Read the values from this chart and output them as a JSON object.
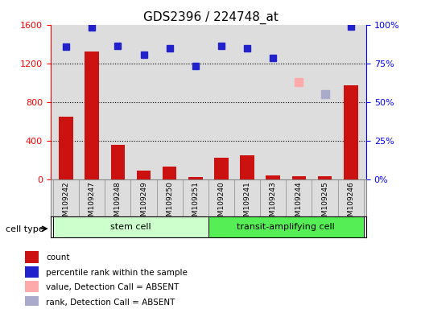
{
  "title": "GDS2396 / 224748_at",
  "samples": [
    "GSM109242",
    "GSM109247",
    "GSM109248",
    "GSM109249",
    "GSM109250",
    "GSM109251",
    "GSM109240",
    "GSM109241",
    "GSM109243",
    "GSM109244",
    "GSM109245",
    "GSM109246"
  ],
  "count_values": [
    650,
    1320,
    360,
    90,
    130,
    20,
    220,
    250,
    40,
    30,
    30,
    970
  ],
  "percentile_rank": [
    1370,
    1570,
    1380,
    1290,
    1360,
    1170,
    1380,
    1360,
    1260,
    null,
    null,
    1580
  ],
  "absent_value": [
    null,
    null,
    null,
    null,
    null,
    null,
    null,
    null,
    null,
    1010,
    null,
    null
  ],
  "absent_rank": [
    null,
    null,
    null,
    null,
    null,
    null,
    null,
    null,
    null,
    null,
    880,
    null
  ],
  "left_ylim": [
    0,
    1600
  ],
  "right_ylim": [
    0,
    100
  ],
  "left_yticks": [
    0,
    400,
    800,
    1200,
    1600
  ],
  "right_yticks": [
    0,
    25,
    50,
    75,
    100
  ],
  "right_yticklabels": [
    "0%",
    "25%",
    "50%",
    "75%",
    "100%"
  ],
  "bar_color": "#cc1111",
  "blue_marker_color": "#2222cc",
  "absent_value_color": "#ffaaaa",
  "absent_rank_color": "#aaaacc",
  "bg_color": "#dddddd",
  "stem_color": "#ccffcc",
  "transit_color": "#55ee55",
  "legend_items": [
    {
      "label": "count",
      "color": "#cc1111"
    },
    {
      "label": "percentile rank within the sample",
      "color": "#2222cc"
    },
    {
      "label": "value, Detection Call = ABSENT",
      "color": "#ffaaaa"
    },
    {
      "label": "rank, Detection Call = ABSENT",
      "color": "#aaaacc"
    }
  ]
}
